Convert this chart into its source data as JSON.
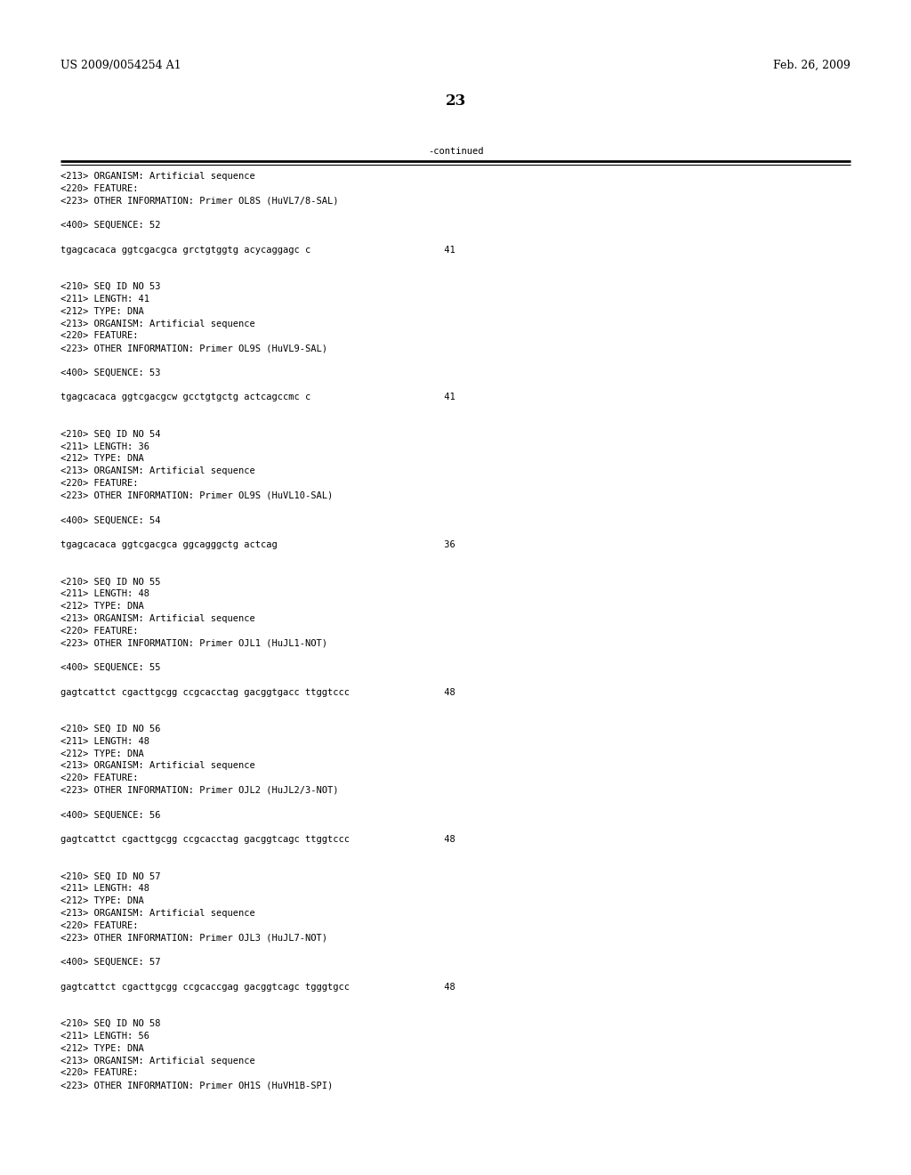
{
  "patent_number": "US 2009/0054254 A1",
  "date": "Feb. 26, 2009",
  "page_number": "23",
  "continued_label": "-continued",
  "background_color": "#ffffff",
  "text_color": "#000000",
  "font_size_header": 9.0,
  "font_size_body": 7.5,
  "font_size_page_num": 12,
  "lines": [
    "<213> ORGANISM: Artificial sequence",
    "<220> FEATURE:",
    "<223> OTHER INFORMATION: Primer OL8S (HuVL7/8-SAL)",
    "",
    "<400> SEQUENCE: 52",
    "",
    "tgagcacaca ggtcgacgca grctgtggtg acycaggagc c                        41",
    "",
    "",
    "<210> SEQ ID NO 53",
    "<211> LENGTH: 41",
    "<212> TYPE: DNA",
    "<213> ORGANISM: Artificial sequence",
    "<220> FEATURE:",
    "<223> OTHER INFORMATION: Primer OL9S (HuVL9-SAL)",
    "",
    "<400> SEQUENCE: 53",
    "",
    "tgagcacaca ggtcgacgcw gcctgtgctg actcagccmc c                        41",
    "",
    "",
    "<210> SEQ ID NO 54",
    "<211> LENGTH: 36",
    "<212> TYPE: DNA",
    "<213> ORGANISM: Artificial sequence",
    "<220> FEATURE:",
    "<223> OTHER INFORMATION: Primer OL9S (HuVL10-SAL)",
    "",
    "<400> SEQUENCE: 54",
    "",
    "tgagcacaca ggtcgacgca ggcagggctg actcag                              36",
    "",
    "",
    "<210> SEQ ID NO 55",
    "<211> LENGTH: 48",
    "<212> TYPE: DNA",
    "<213> ORGANISM: Artificial sequence",
    "<220> FEATURE:",
    "<223> OTHER INFORMATION: Primer OJL1 (HuJL1-NOT)",
    "",
    "<400> SEQUENCE: 55",
    "",
    "gagtcattct cgacttgcgg ccgcacctag gacggtgacc ttggtccc                 48",
    "",
    "",
    "<210> SEQ ID NO 56",
    "<211> LENGTH: 48",
    "<212> TYPE: DNA",
    "<213> ORGANISM: Artificial sequence",
    "<220> FEATURE:",
    "<223> OTHER INFORMATION: Primer OJL2 (HuJL2/3-NOT)",
    "",
    "<400> SEQUENCE: 56",
    "",
    "gagtcattct cgacttgcgg ccgcacctag gacggtcagc ttggtccc                 48",
    "",
    "",
    "<210> SEQ ID NO 57",
    "<211> LENGTH: 48",
    "<212> TYPE: DNA",
    "<213> ORGANISM: Artificial sequence",
    "<220> FEATURE:",
    "<223> OTHER INFORMATION: Primer OJL3 (HuJL7-NOT)",
    "",
    "<400> SEQUENCE: 57",
    "",
    "gagtcattct cgacttgcgg ccgcaccgag gacggtcagc tgggtgcc                 48",
    "",
    "",
    "<210> SEQ ID NO 58",
    "<211> LENGTH: 56",
    "<212> TYPE: DNA",
    "<213> ORGANISM: Artificial sequence",
    "<220> FEATURE:",
    "<223> OTHER INFORMATION: Primer OH1S (HuVH1B-SPI)"
  ]
}
